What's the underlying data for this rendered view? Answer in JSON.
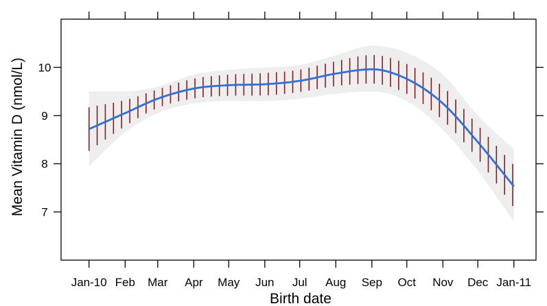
{
  "chart_data": {
    "type": "line",
    "xlabel": "Birth date",
    "ylabel": "Mean Vitamin D (nmol/L)",
    "x_ticks": [
      "Jan-10",
      "Feb",
      "Mar",
      "Apr",
      "May",
      "Jun",
      "Jul",
      "Aug",
      "Sep",
      "Oct",
      "Nov",
      "Dec",
      "Jan-11"
    ],
    "y_ticks": [
      7,
      8,
      9,
      10
    ],
    "xlim": [
      "2009-12-08",
      "2011-01-20"
    ],
    "ylim": [
      6.0,
      11.0
    ],
    "grid": false,
    "colors": {
      "fit_line": "#2f6fd6",
      "error_bars": "#8b1a1a",
      "confidence_band": "#eeeeee",
      "axes": "#000000"
    },
    "series": [
      {
        "kind": "fitted_curve",
        "x": [
          "2010-01-01",
          "2010-02-01",
          "2010-03-01",
          "2010-04-01",
          "2010-05-01",
          "2010-06-01",
          "2010-07-01",
          "2010-08-01",
          "2010-09-01",
          "2010-10-01",
          "2010-11-01",
          "2010-12-01",
          "2011-01-01"
        ],
        "y": [
          8.72,
          9.05,
          9.35,
          9.56,
          9.63,
          9.65,
          9.72,
          9.87,
          9.96,
          9.76,
          9.25,
          8.45,
          7.53
        ]
      },
      {
        "kind": "confidence_band",
        "x": [
          "2010-01-01",
          "2010-02-01",
          "2010-03-01",
          "2010-04-01",
          "2010-05-01",
          "2010-06-01",
          "2010-07-01",
          "2010-08-01",
          "2010-09-01",
          "2010-10-01",
          "2010-11-01",
          "2010-12-01",
          "2011-01-01"
        ],
        "upper": [
          9.5,
          9.5,
          9.6,
          9.85,
          9.95,
          10.0,
          10.05,
          10.25,
          10.45,
          10.3,
          9.85,
          9.0,
          8.3
        ],
        "lower": [
          7.95,
          8.65,
          9.05,
          9.25,
          9.3,
          9.3,
          9.35,
          9.45,
          9.5,
          9.3,
          8.7,
          7.85,
          6.8
        ]
      }
    ]
  }
}
